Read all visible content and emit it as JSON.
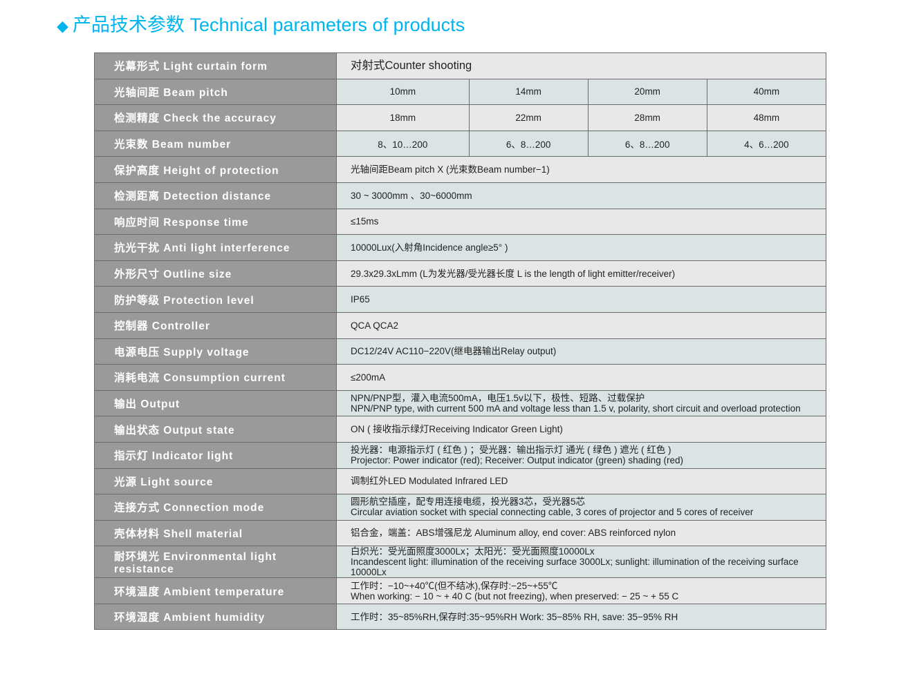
{
  "title": {
    "icon": "diamond-icon",
    "zh": "产品技术参数",
    "en": "Technical parameters of products"
  },
  "colors": {
    "title": "#00b4ee",
    "label_bg": "#9a9a9a",
    "row_gray": "#e8e8e8",
    "row_teal": "#dbe4e4"
  },
  "rows": [
    {
      "label": "光幕形式 Light curtain form",
      "value": "对射式Counter shooting"
    },
    {
      "label": "光轴间距 Beam pitch",
      "cells": [
        "10mm",
        "14mm",
        "20mm",
        "40mm"
      ]
    },
    {
      "label": "检测精度 Check the accuracy",
      "cells": [
        "18mm",
        "22mm",
        "28mm",
        "48mm"
      ]
    },
    {
      "label": "光束数 Beam number",
      "cells": [
        "8、10…200",
        "6、8…200",
        "6、8…200",
        "4、6…200"
      ]
    },
    {
      "label": "保护高度 Height of protection",
      "value": "光轴间距Beam pitch X (光束数Beam number−1)"
    },
    {
      "label": "检测距离 Detection distance",
      "value": "30 ~ 3000mm 、30~6000mm"
    },
    {
      "label": "响应时间 Response time",
      "value": "≤15ms"
    },
    {
      "label": "抗光干扰 Anti light interference",
      "value": "10000Lux(入射角Incidence angle≥5° )"
    },
    {
      "label": "外形尺寸 Outline size",
      "value": "29.3x29.3xLmm (L为发光器/受光器长度 L is the length of light emitter/receiver)"
    },
    {
      "label": "防护等级 Protection level",
      "value": "IP65"
    },
    {
      "label": "控制器 Controller",
      "value": "QCA    QCA2"
    },
    {
      "label": "电源电压 Supply voltage",
      "value": "DC12/24V    AC110−220V(继电器输出Relay output)"
    },
    {
      "label": "消耗电流 Consumption current",
      "value": "≤200mA"
    },
    {
      "label": "输出 Output",
      "value": "NPN/PNP型，灌入电流500mA，电压1.5v以下，极性、短路、过载保护",
      "value2": "NPN/PNP type, with current 500 mA and voltage less than 1.5 v, polarity, short circuit and overload protection"
    },
    {
      "label": "输出状态 Output state",
      "value": "ON ( 接收指示绿灯Receiving Indicator Green Light)"
    },
    {
      "label": "指示灯 Indicator light",
      "value": "投光器：电源指示灯 ( 红色 ) ；受光器：输出指示灯 通光 ( 绿色 ) 遮光 ( 红色 )",
      "value2": "Projector: Power indicator (red); Receiver: Output indicator (green) shading (red)"
    },
    {
      "label": "光源 Light source",
      "value": "调制红外LED  Modulated Infrared LED"
    },
    {
      "label": "连接方式 Connection mode",
      "value": "圆形航空插座，配专用连接电缆，投光器3芯，受光器5芯",
      "value2": "Circular aviation socket with special connecting cable, 3 cores of projector and 5 cores of receiver"
    },
    {
      "label": "壳体材料 Shell material",
      "value": "铝合金，端盖：ABS增强尼龙  Aluminum alloy, end cover: ABS reinforced nylon"
    },
    {
      "label": "耐环境光 Environmental light resistance",
      "value": "白炽光：受光面照度3000Lx；太阳光：受光面照度10000Lx",
      "value2": "Incandescent light: illumination of the receiving surface 3000Lx; sunlight: illumination of the receiving surface 10000Lx"
    },
    {
      "label": "环境温度 Ambient temperature",
      "value": "工作时：−10~+40℃(但不结冰),保存时:−25~+55℃",
      "value2": "When working: − 10 ~ + 40 C (but not freezing), when preserved: − 25 ~ + 55 C"
    },
    {
      "label": "环境湿度 Ambient humidity",
      "value": "工作时：35~85%RH,保存时:35~95%RH   Work: 35−85% RH, save: 35−95% RH"
    }
  ]
}
